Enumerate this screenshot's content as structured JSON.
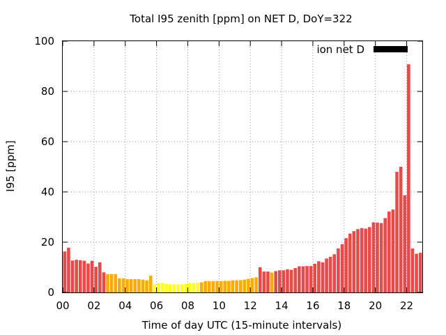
{
  "chart_data": {
    "type": "bar",
    "title": "Total I95 zenith [ppm] on NET D, DoY=322",
    "xlabel": "Time of day UTC (15-minute intervals)",
    "ylabel": "I95 [ppm]",
    "xlim": [
      0,
      23
    ],
    "ylim": [
      0,
      100
    ],
    "grid": true,
    "legend_position": "top-right",
    "legend_entries": [
      "ion net D"
    ],
    "legend_color": "#000000",
    "x_ticks": [
      "00",
      "02",
      "04",
      "06",
      "08",
      "10",
      "12",
      "14",
      "16",
      "18",
      "20",
      "22"
    ],
    "y_ticks": [
      "0",
      "20",
      "40",
      "60",
      "80",
      "100"
    ],
    "bar_interval_hours": 0.25,
    "colors": {
      "high": "#e84a4a",
      "mid": "#ffaa00",
      "low": "#ffff22"
    },
    "values": [
      16.3,
      17.8,
      12.7,
      13.0,
      12.8,
      12.6,
      11.5,
      12.6,
      10.2,
      12.0,
      8.0,
      7.3,
      7.3,
      7.3,
      5.6,
      5.6,
      5.3,
      5.3,
      5.3,
      5.3,
      5.1,
      4.8,
      6.7,
      3.2,
      3.7,
      3.7,
      3.4,
      3.2,
      3.2,
      3.2,
      3.2,
      3.4,
      3.8,
      3.8,
      3.8,
      4.0,
      4.5,
      4.5,
      4.5,
      4.5,
      4.5,
      4.6,
      4.6,
      4.8,
      4.8,
      4.9,
      5.1,
      5.4,
      5.7,
      6.0,
      10.0,
      8.3,
      8.3,
      7.9,
      8.5,
      8.8,
      8.8,
      9.2,
      9.0,
      9.7,
      10.4,
      10.4,
      10.5,
      10.5,
      11.4,
      12.4,
      12.0,
      13.5,
      14.2,
      15.2,
      17.5,
      19.2,
      21.6,
      23.4,
      24.4,
      25.2,
      25.6,
      25.4,
      26.0,
      27.9,
      27.8,
      27.6,
      29.6,
      32.2,
      33.0,
      48.0,
      50.0,
      38.7,
      90.8,
      17.5,
      15.4,
      15.8
    ]
  }
}
